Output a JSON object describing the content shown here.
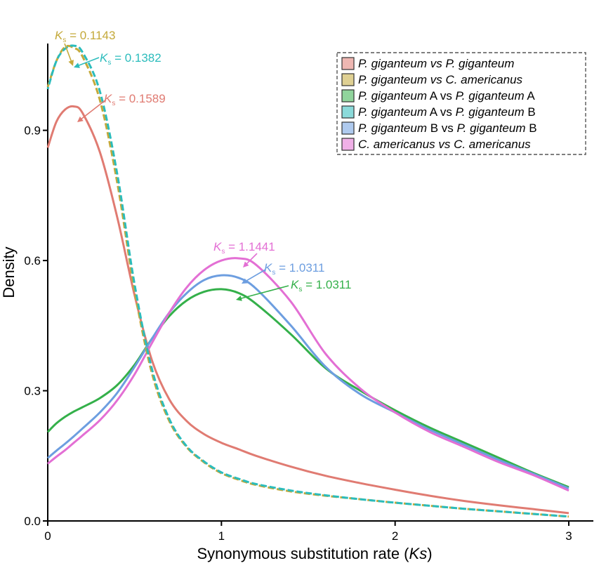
{
  "chart_data": {
    "type": "line",
    "title": "",
    "xlabel": "Synonymous substitution rate (Ks)",
    "ylabel": "Density",
    "xlim": [
      0,
      3
    ],
    "ylim": [
      0,
      1.1
    ],
    "x_ticks": [
      0,
      1,
      2,
      3
    ],
    "x_tick_labels": [
      "0",
      "1",
      "2",
      "3"
    ],
    "y_ticks": [
      0.0,
      0.3,
      0.6,
      0.9
    ],
    "y_tick_labels": [
      "0.0",
      "0.3",
      "0.6",
      "0.9"
    ],
    "grid": false,
    "legend_position": "top-right",
    "x": [
      0,
      0.05,
      0.1,
      0.15,
      0.2,
      0.3,
      0.4,
      0.5,
      0.6,
      0.7,
      0.8,
      0.9,
      1.0,
      1.1,
      1.2,
      1.4,
      1.6,
      1.8,
      2.0,
      2.2,
      2.4,
      2.6,
      2.8,
      3.0
    ],
    "series": [
      {
        "name": "P. giganteum vs P. giganteum",
        "color": "#e07b72",
        "dashed": false,
        "values": [
          0.86,
          0.92,
          0.948,
          0.955,
          0.94,
          0.85,
          0.7,
          0.52,
          0.37,
          0.28,
          0.23,
          0.2,
          0.18,
          0.165,
          0.15,
          0.125,
          0.104,
          0.087,
          0.072,
          0.058,
          0.046,
          0.036,
          0.027,
          0.018
        ]
      },
      {
        "name": "P. giganteum vs C. americanus",
        "color": "#c4a93a",
        "dashed": true,
        "values": [
          1.0,
          1.06,
          1.092,
          1.09,
          1.07,
          0.97,
          0.78,
          0.53,
          0.34,
          0.23,
          0.17,
          0.135,
          0.11,
          0.095,
          0.083,
          0.068,
          0.058,
          0.05,
          0.042,
          0.035,
          0.028,
          0.022,
          0.016,
          0.01
        ]
      },
      {
        "name": "P. giganteum A vs P. giganteum A",
        "color": "#34b04a",
        "dashed": false,
        "values": [
          0.205,
          0.225,
          0.24,
          0.252,
          0.262,
          0.283,
          0.313,
          0.36,
          0.42,
          0.472,
          0.508,
          0.528,
          0.534,
          0.525,
          0.5,
          0.43,
          0.352,
          0.3,
          0.255,
          0.215,
          0.18,
          0.145,
          0.11,
          0.078
        ]
      },
      {
        "name": "P. giganteum A vs P. giganteum B",
        "color": "#2bbcbc",
        "dashed": true,
        "values": [
          0.995,
          1.06,
          1.088,
          1.095,
          1.08,
          0.99,
          0.8,
          0.545,
          0.35,
          0.235,
          0.172,
          0.137,
          0.112,
          0.097,
          0.085,
          0.07,
          0.059,
          0.05,
          0.042,
          0.035,
          0.028,
          0.022,
          0.016,
          0.01
        ]
      },
      {
        "name": "P. giganteum B vs P. giganteum B",
        "color": "#6d9ee0",
        "dashed": false,
        "values": [
          0.145,
          0.162,
          0.178,
          0.195,
          0.213,
          0.25,
          0.295,
          0.355,
          0.42,
          0.48,
          0.525,
          0.555,
          0.566,
          0.56,
          0.535,
          0.45,
          0.355,
          0.292,
          0.25,
          0.21,
          0.175,
          0.14,
          0.108,
          0.075
        ]
      },
      {
        "name": "C. americanus vs C. americanus",
        "color": "#e36fd4",
        "dashed": false,
        "values": [
          0.132,
          0.148,
          0.163,
          0.18,
          0.197,
          0.232,
          0.278,
          0.338,
          0.41,
          0.48,
          0.538,
          0.578,
          0.6,
          0.605,
          0.59,
          0.505,
          0.385,
          0.305,
          0.25,
          0.205,
          0.17,
          0.135,
          0.105,
          0.07
        ]
      }
    ],
    "annotations": [
      {
        "sym": "K",
        "sub": "s",
        "text": "= 0.1143",
        "color": "#c4a93a",
        "x": 0.1143,
        "y": 1.092
      },
      {
        "sym": "K",
        "sub": "s",
        "text": "= 0.1382",
        "color": "#2bbcbc",
        "x": 0.1382,
        "y": 1.095
      },
      {
        "sym": "K",
        "sub": "s",
        "text": "= 0.1589",
        "color": "#e07b72",
        "x": 0.1589,
        "y": 0.955
      },
      {
        "sym": "K",
        "sub": "s",
        "text": "= 1.1441",
        "color": "#e36fd4",
        "x": 1.1441,
        "y": 0.605
      },
      {
        "sym": "K",
        "sub": "s",
        "text": "= 1.0311",
        "color": "#6d9ee0",
        "x": 1.0311,
        "y": 0.566
      },
      {
        "sym": "K",
        "sub": "s",
        "text": "= 1.0311",
        "color": "#34b04a",
        "x": 1.0311,
        "y": 0.534
      }
    ],
    "legend": [
      {
        "color": "#e07b72",
        "parts": [
          [
            "P. giganteum",
            true
          ],
          [
            " vs ",
            true
          ],
          [
            "P. giganteum",
            true
          ]
        ]
      },
      {
        "color": "#c4a93a",
        "parts": [
          [
            "P. giganteum",
            true
          ],
          [
            " vs ",
            true
          ],
          [
            "C. americanus",
            true
          ]
        ]
      },
      {
        "color": "#34b04a",
        "parts": [
          [
            "P. giganteum",
            true
          ],
          [
            " A vs ",
            false
          ],
          [
            "P. giganteum",
            true
          ],
          [
            " A",
            false
          ]
        ]
      },
      {
        "color": "#2bbcbc",
        "parts": [
          [
            "P. giganteum",
            true
          ],
          [
            " A vs ",
            false
          ],
          [
            "P. giganteum",
            true
          ],
          [
            " B",
            false
          ]
        ]
      },
      {
        "color": "#6d9ee0",
        "parts": [
          [
            "P. giganteum",
            true
          ],
          [
            " B vs ",
            false
          ],
          [
            "P. giganteum",
            true
          ],
          [
            " B",
            false
          ]
        ]
      },
      {
        "color": "#e36fd4",
        "parts": [
          [
            "C. americanus",
            true
          ],
          [
            " vs ",
            true
          ],
          [
            "C. americanus",
            true
          ]
        ]
      }
    ]
  }
}
